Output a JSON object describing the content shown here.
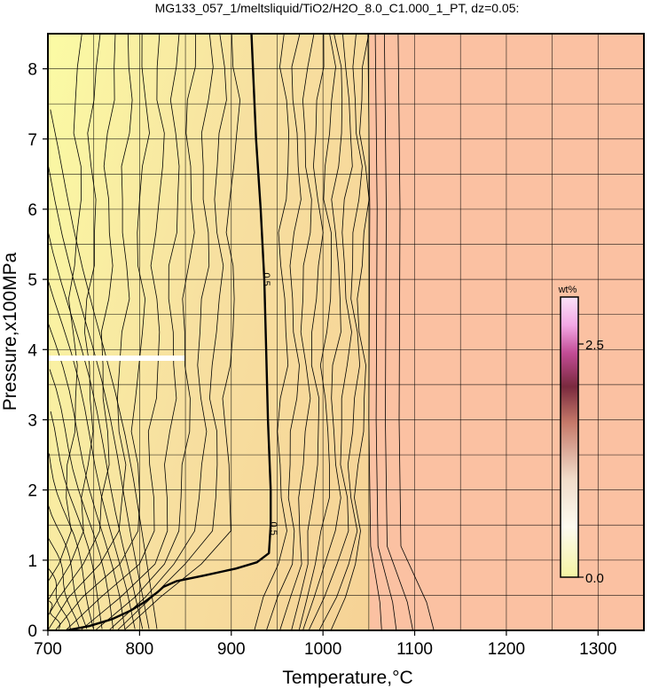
{
  "chart_data": {
    "type": "contour",
    "title": "MG133_057_1/meltsliquid/TiO2/H2O_8.0_C1.000_1_PT, dz=0.05:",
    "xlabel": "Temperature,°C",
    "ylabel": "Pressure,x100MPa",
    "xlim": [
      700,
      1350
    ],
    "ylim": [
      0,
      8.5
    ],
    "xticks": [
      "700",
      "800",
      "900",
      "1000",
      "1100",
      "1200",
      "1300"
    ],
    "yticks": [
      "0",
      "1",
      "2",
      "3",
      "4",
      "5",
      "6",
      "7",
      "8"
    ],
    "grid": true,
    "colorbar": {
      "title": "wt%",
      "range": [
        0.0,
        2.8
      ],
      "ticks": [
        "0.0",
        "2.5"
      ],
      "placement": "right-inside"
    },
    "contour_interval": 0.05,
    "labeled_contour": {
      "level": "0.5",
      "label": "0.5"
    },
    "colors": {
      "low": "#fbfba4",
      "mid": "#f7cc8f",
      "high": "#fbc1a2",
      "cb_top": "#7a2a6a",
      "cb_bottom": "#f5f3a2"
    }
  }
}
